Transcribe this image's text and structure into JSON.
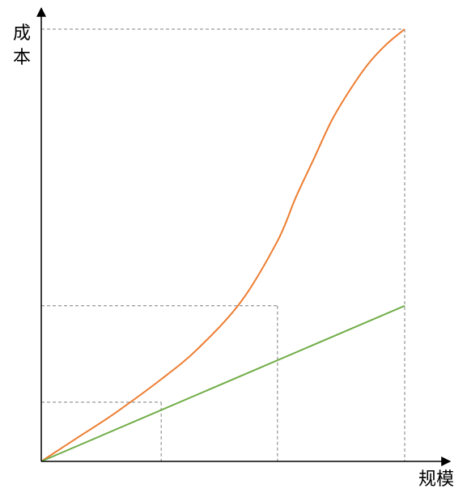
{
  "chart_data": {
    "type": "line",
    "ylabel": "成本",
    "xlabel": "规模",
    "xlim": [
      0,
      100
    ],
    "ylim": [
      0,
      100
    ],
    "grid": false,
    "ticks": "none",
    "series": [
      {
        "color": "#ED7D31",
        "x": [
          0,
          10,
          20,
          33,
          43,
          55,
          65,
          70,
          75,
          80,
          85,
          90,
          95,
          100
        ],
        "y": [
          0,
          5.5,
          11,
          19,
          26,
          37,
          51,
          61,
          70,
          79,
          86,
          92,
          96.5,
          100
        ]
      },
      {
        "color": "#70AD47",
        "x": [
          0,
          100
        ],
        "y": [
          0,
          36
        ]
      }
    ],
    "reference_points": [
      {
        "x": 33,
        "y": 13.7
      },
      {
        "x": 65,
        "y": 36
      },
      {
        "x": 100,
        "y": 100
      }
    ]
  },
  "colors": {
    "axis": "#000000",
    "reference_lines": "#808080"
  }
}
